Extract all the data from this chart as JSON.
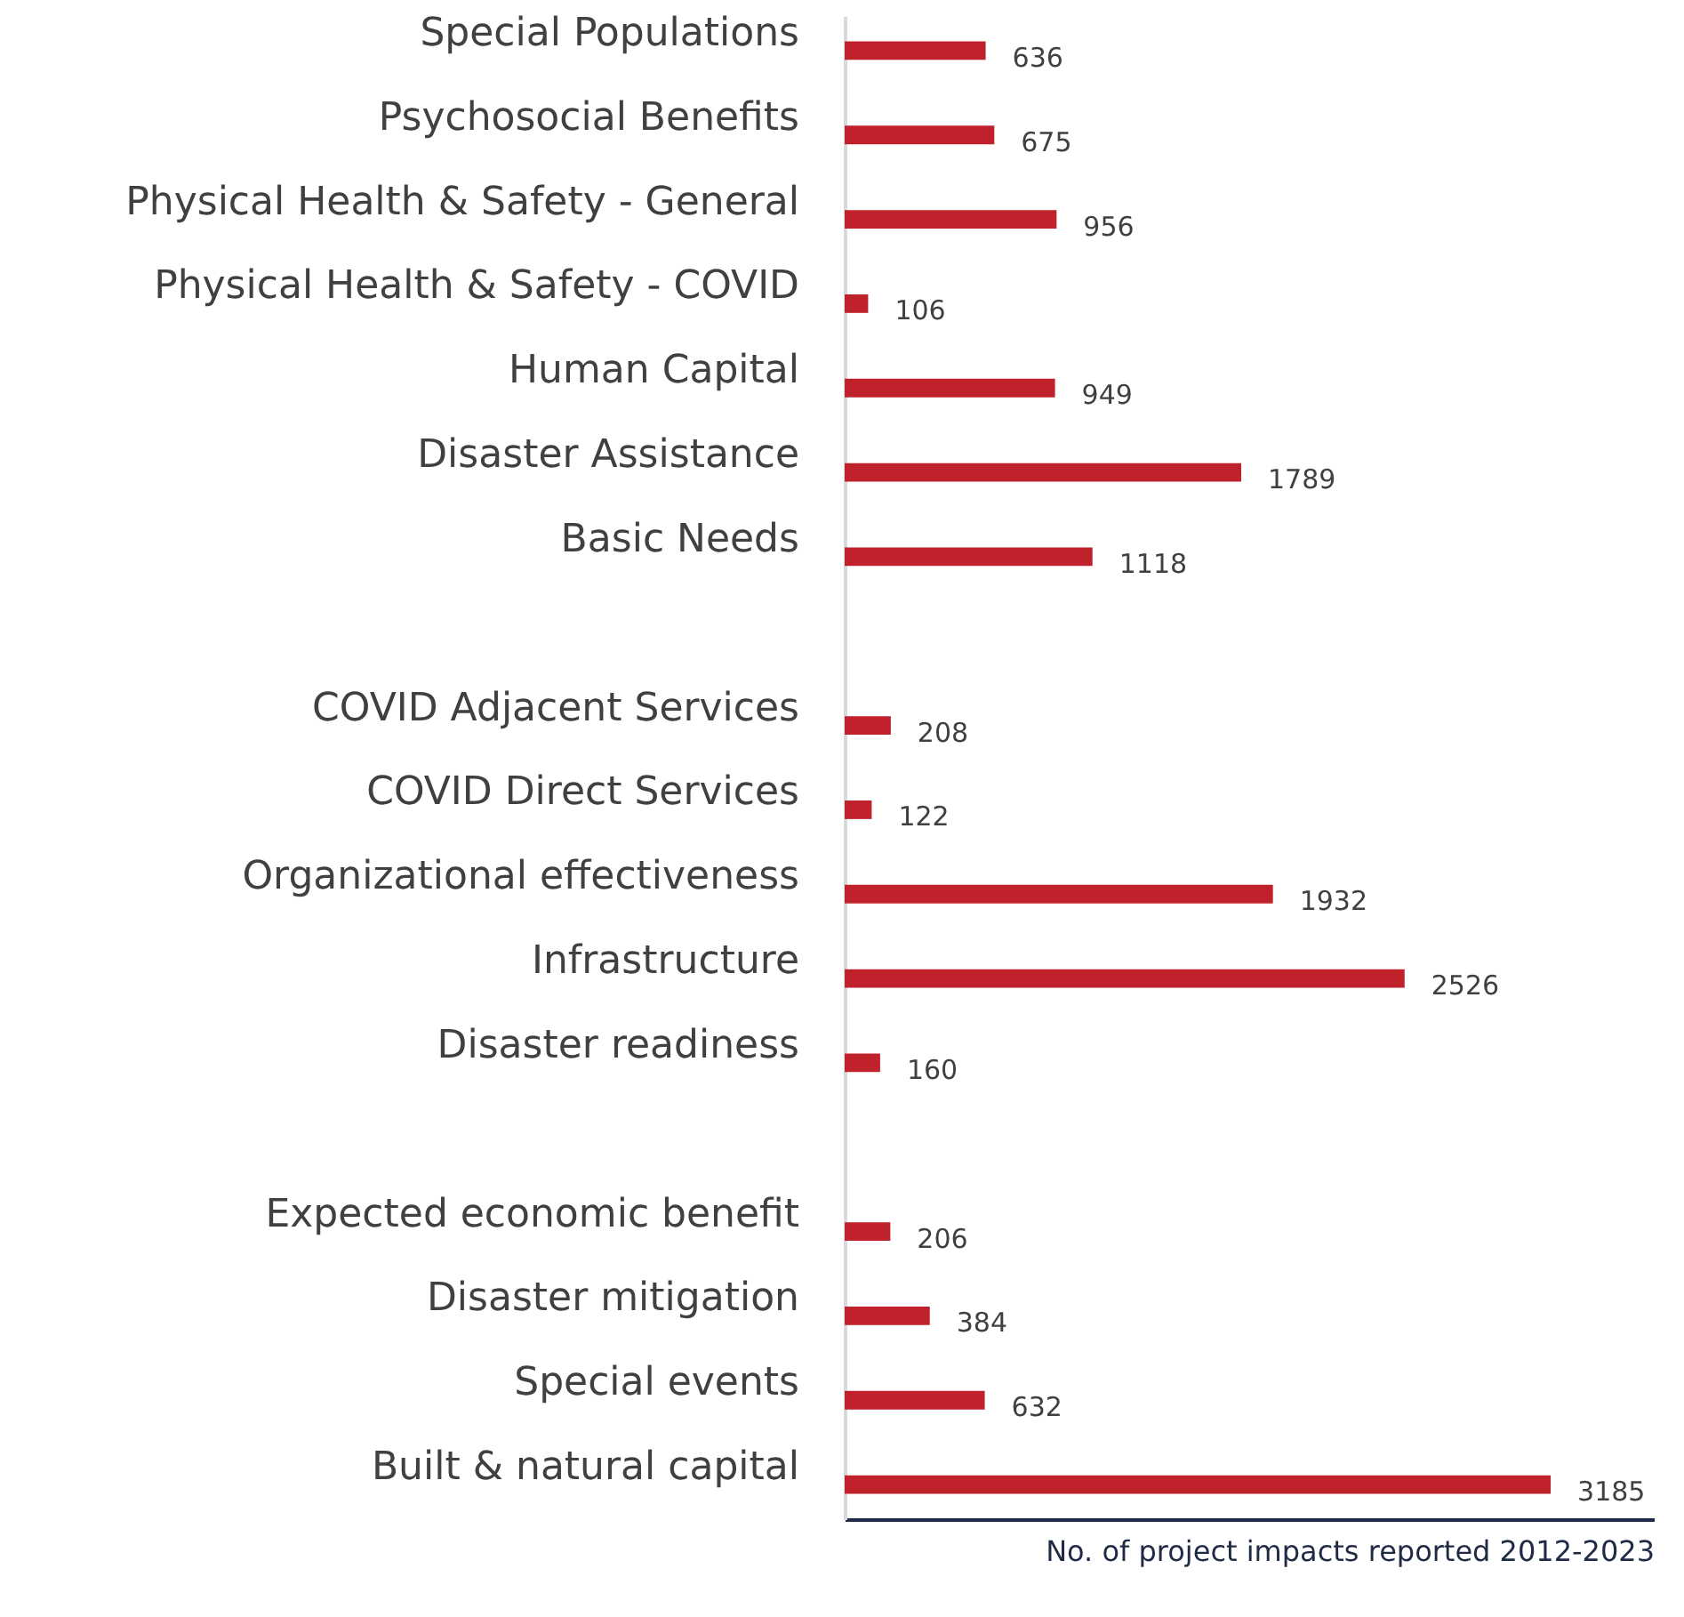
{
  "chart_data": {
    "type": "bar",
    "orientation": "horizontal",
    "xlabel": "No. of project impacts reported 2012-2023",
    "categories": [
      "Special Populations",
      "Psychosocial Benefits",
      "Physical Health & Safety - General",
      "Physical Health & Safety - COVID",
      "Human Capital",
      "Disaster Assistance",
      "Basic Needs",
      null,
      "COVID Adjacent Services",
      "COVID Direct Services",
      "Organizational effectiveness",
      "Infrastructure",
      "Disaster readiness ",
      null,
      "Expected economic benefit",
      "Disaster mitigation",
      "Special events",
      "Built & natural capital"
    ],
    "values": [
      636,
      675,
      956,
      106,
      949,
      1789,
      1118,
      null,
      208,
      122,
      1932,
      2526,
      160,
      null,
      206,
      384,
      632,
      3185
    ],
    "color": "#c0222c",
    "data_labels": true,
    "xlim": [
      0,
      3650
    ],
    "tick_labels": "y"
  }
}
